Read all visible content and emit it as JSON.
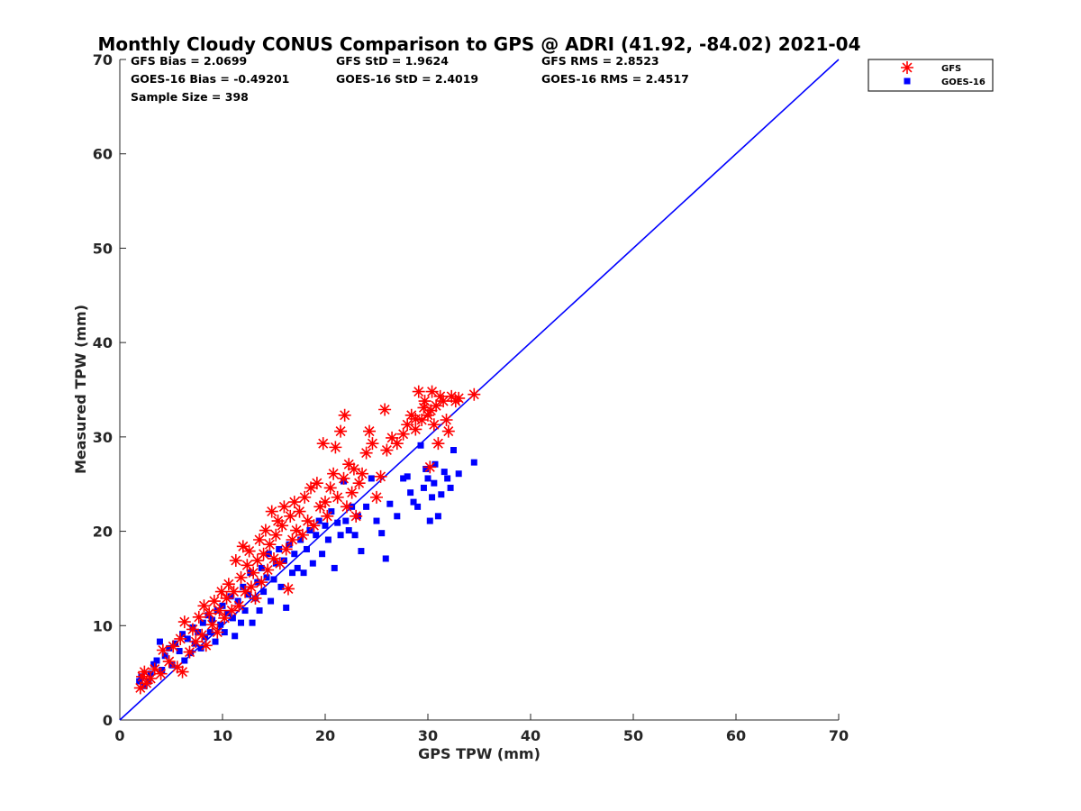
{
  "chart_data": {
    "type": "scatter",
    "title": "Monthly Cloudy CONUS Comparison to GPS @ ADRI (41.92, -84.02) 2021-04",
    "xlabel": "GPS TPW (mm)",
    "ylabel": "Measured TPW (mm)",
    "xlim": [
      0,
      70
    ],
    "ylim": [
      0,
      70
    ],
    "xticks": [
      "0",
      "10",
      "20",
      "30",
      "40",
      "50",
      "60",
      "70"
    ],
    "yticks": [
      "0",
      "10",
      "20",
      "30",
      "40",
      "50",
      "60",
      "70"
    ],
    "grid": false,
    "legend_position": "top-right-outside",
    "stats": {
      "gfs_bias": "GFS Bias = 2.0699",
      "gfs_std": "GFS StD = 1.9624",
      "gfs_rms": "GFS RMS = 2.8523",
      "goes_bias": "GOES-16 Bias = -0.49201",
      "goes_std": "GOES-16 StD = 2.4019",
      "goes_rms": "GOES-16 RMS = 2.4517",
      "sample_size": "Sample Size = 398"
    },
    "reference_line": {
      "x": [
        0,
        70
      ],
      "y": [
        0,
        70
      ],
      "color": "#0000ff"
    },
    "series": [
      {
        "name": "GFS",
        "marker": "asterisk",
        "color": "#ff0000",
        "points": [
          [
            2.0,
            3.4
          ],
          [
            2.2,
            4.6
          ],
          [
            2.6,
            3.9
          ],
          [
            3.0,
            4.4
          ],
          [
            2.4,
            5.1
          ],
          [
            3.4,
            5.4
          ],
          [
            4.0,
            4.9
          ],
          [
            4.2,
            7.4
          ],
          [
            4.8,
            6.2
          ],
          [
            5.2,
            7.8
          ],
          [
            5.6,
            5.6
          ],
          [
            5.9,
            8.6
          ],
          [
            6.1,
            5.1
          ],
          [
            6.3,
            10.4
          ],
          [
            6.8,
            7.2
          ],
          [
            7.1,
            9.6
          ],
          [
            7.4,
            8.3
          ],
          [
            7.7,
            10.9
          ],
          [
            8.0,
            9.0
          ],
          [
            8.2,
            12.1
          ],
          [
            8.4,
            7.9
          ],
          [
            8.7,
            11.3
          ],
          [
            9.0,
            10.1
          ],
          [
            9.2,
            12.6
          ],
          [
            9.5,
            9.3
          ],
          [
            9.7,
            11.6
          ],
          [
            9.9,
            13.6
          ],
          [
            10.2,
            10.8
          ],
          [
            10.4,
            12.9
          ],
          [
            10.6,
            14.4
          ],
          [
            10.9,
            11.6
          ],
          [
            11.1,
            13.6
          ],
          [
            11.3,
            16.9
          ],
          [
            11.6,
            12.1
          ],
          [
            11.8,
            15.1
          ],
          [
            12.0,
            18.4
          ],
          [
            12.2,
            13.6
          ],
          [
            12.4,
            16.4
          ],
          [
            12.6,
            17.9
          ],
          [
            12.8,
            14.1
          ],
          [
            13.0,
            15.6
          ],
          [
            13.2,
            12.9
          ],
          [
            13.4,
            16.9
          ],
          [
            13.6,
            19.1
          ],
          [
            13.8,
            14.6
          ],
          [
            14.0,
            17.6
          ],
          [
            14.2,
            20.1
          ],
          [
            14.4,
            15.9
          ],
          [
            14.6,
            18.6
          ],
          [
            14.8,
            22.1
          ],
          [
            15.0,
            17.1
          ],
          [
            15.2,
            19.6
          ],
          [
            15.4,
            21.1
          ],
          [
            15.6,
            16.6
          ],
          [
            15.8,
            20.6
          ],
          [
            16.0,
            22.6
          ],
          [
            16.2,
            18.1
          ],
          [
            16.4,
            13.9
          ],
          [
            16.6,
            21.6
          ],
          [
            16.8,
            19.1
          ],
          [
            17.0,
            23.1
          ],
          [
            17.2,
            20.1
          ],
          [
            17.5,
            22.1
          ],
          [
            17.8,
            19.6
          ],
          [
            18.0,
            23.6
          ],
          [
            18.3,
            21.1
          ],
          [
            18.6,
            24.6
          ],
          [
            18.9,
            20.6
          ],
          [
            19.2,
            25.1
          ],
          [
            19.5,
            22.6
          ],
          [
            19.8,
            29.3
          ],
          [
            20.0,
            23.1
          ],
          [
            20.2,
            21.6
          ],
          [
            20.5,
            24.6
          ],
          [
            20.8,
            26.1
          ],
          [
            21.0,
            28.9
          ],
          [
            21.2,
            23.6
          ],
          [
            21.5,
            30.6
          ],
          [
            21.8,
            25.6
          ],
          [
            21.9,
            32.3
          ],
          [
            22.1,
            22.6
          ],
          [
            22.3,
            27.1
          ],
          [
            22.6,
            24.1
          ],
          [
            22.8,
            26.6
          ],
          [
            23.0,
            21.6
          ],
          [
            23.3,
            25.1
          ],
          [
            23.6,
            26.1
          ],
          [
            24.0,
            28.3
          ],
          [
            24.3,
            30.6
          ],
          [
            24.6,
            29.3
          ],
          [
            25.0,
            23.6
          ],
          [
            25.4,
            25.8
          ],
          [
            25.8,
            32.9
          ],
          [
            26.0,
            28.6
          ],
          [
            26.5,
            29.9
          ],
          [
            27.0,
            29.3
          ],
          [
            27.6,
            30.3
          ],
          [
            28.0,
            31.3
          ],
          [
            28.4,
            32.3
          ],
          [
            28.8,
            30.8
          ],
          [
            29.1,
            34.8
          ],
          [
            29.4,
            31.8
          ],
          [
            29.7,
            33.8
          ],
          [
            30.0,
            32.3
          ],
          [
            30.2,
            26.8
          ],
          [
            30.4,
            34.8
          ],
          [
            30.6,
            31.3
          ],
          [
            30.8,
            33.3
          ],
          [
            31.0,
            29.3
          ],
          [
            31.2,
            34.3
          ],
          [
            31.5,
            33.8
          ],
          [
            31.8,
            31.8
          ],
          [
            32.0,
            30.6
          ],
          [
            32.3,
            34.3
          ],
          [
            32.7,
            33.8
          ],
          [
            33.0,
            34.1
          ],
          [
            34.5,
            34.5
          ],
          [
            29.6,
            33.1
          ],
          [
            28.8,
            31.9
          ],
          [
            30.3,
            32.8
          ]
        ]
      },
      {
        "name": "GOES-16",
        "marker": "square",
        "color": "#0000ff",
        "points": [
          [
            1.9,
            4.1
          ],
          [
            2.1,
            4.6
          ],
          [
            2.4,
            3.6
          ],
          [
            2.8,
            4.1
          ],
          [
            3.0,
            4.9
          ],
          [
            3.3,
            5.9
          ],
          [
            3.6,
            6.3
          ],
          [
            3.9,
            8.3
          ],
          [
            4.1,
            5.3
          ],
          [
            4.4,
            6.8
          ],
          [
            4.8,
            7.6
          ],
          [
            5.1,
            5.8
          ],
          [
            5.4,
            8.1
          ],
          [
            5.8,
            7.3
          ],
          [
            6.1,
            9.1
          ],
          [
            6.3,
            6.3
          ],
          [
            6.6,
            8.6
          ],
          [
            6.9,
            7.1
          ],
          [
            7.1,
            9.8
          ],
          [
            7.3,
            8.1
          ],
          [
            7.6,
            9.3
          ],
          [
            7.9,
            7.6
          ],
          [
            8.1,
            10.3
          ],
          [
            8.3,
            8.8
          ],
          [
            8.6,
            11.1
          ],
          [
            8.8,
            9.3
          ],
          [
            9.0,
            10.6
          ],
          [
            9.3,
            8.3
          ],
          [
            9.5,
            11.6
          ],
          [
            9.8,
            10.1
          ],
          [
            10.0,
            12.1
          ],
          [
            10.2,
            9.3
          ],
          [
            10.5,
            11.3
          ],
          [
            10.8,
            13.1
          ],
          [
            11.0,
            10.8
          ],
          [
            11.2,
            8.9
          ],
          [
            11.5,
            12.6
          ],
          [
            11.8,
            10.3
          ],
          [
            12.0,
            14.1
          ],
          [
            12.2,
            11.6
          ],
          [
            12.5,
            13.3
          ],
          [
            12.7,
            15.6
          ],
          [
            12.9,
            10.3
          ],
          [
            13.2,
            12.9
          ],
          [
            13.4,
            14.6
          ],
          [
            13.6,
            11.6
          ],
          [
            13.8,
            16.1
          ],
          [
            14.0,
            13.6
          ],
          [
            14.3,
            15.1
          ],
          [
            14.5,
            17.6
          ],
          [
            14.7,
            12.6
          ],
          [
            15.0,
            14.9
          ],
          [
            15.2,
            16.6
          ],
          [
            15.5,
            18.1
          ],
          [
            15.7,
            14.1
          ],
          [
            16.0,
            16.9
          ],
          [
            16.2,
            11.9
          ],
          [
            16.5,
            18.6
          ],
          [
            16.8,
            15.6
          ],
          [
            17.0,
            17.6
          ],
          [
            17.3,
            16.1
          ],
          [
            17.6,
            19.1
          ],
          [
            17.9,
            15.6
          ],
          [
            18.2,
            18.1
          ],
          [
            18.5,
            20.1
          ],
          [
            18.8,
            16.6
          ],
          [
            19.1,
            19.6
          ],
          [
            19.4,
            21.1
          ],
          [
            19.7,
            17.6
          ],
          [
            20.0,
            20.6
          ],
          [
            20.3,
            19.1
          ],
          [
            20.6,
            22.1
          ],
          [
            20.9,
            16.1
          ],
          [
            21.2,
            20.9
          ],
          [
            21.5,
            19.6
          ],
          [
            21.8,
            25.3
          ],
          [
            22.0,
            21.1
          ],
          [
            22.3,
            20.1
          ],
          [
            22.6,
            22.6
          ],
          [
            22.9,
            19.6
          ],
          [
            23.2,
            21.6
          ],
          [
            23.5,
            17.9
          ],
          [
            24.0,
            22.6
          ],
          [
            24.5,
            25.6
          ],
          [
            25.0,
            21.1
          ],
          [
            25.5,
            19.8
          ],
          [
            25.9,
            17.1
          ],
          [
            26.3,
            22.9
          ],
          [
            27.0,
            21.6
          ],
          [
            27.6,
            25.6
          ],
          [
            28.0,
            25.8
          ],
          [
            28.3,
            24.1
          ],
          [
            28.6,
            23.1
          ],
          [
            29.0,
            22.6
          ],
          [
            29.3,
            29.1
          ],
          [
            29.6,
            24.6
          ],
          [
            30.0,
            25.6
          ],
          [
            30.2,
            21.1
          ],
          [
            30.4,
            23.6
          ],
          [
            30.7,
            27.1
          ],
          [
            31.0,
            21.6
          ],
          [
            31.3,
            23.9
          ],
          [
            31.6,
            26.3
          ],
          [
            31.9,
            25.6
          ],
          [
            32.2,
            24.6
          ],
          [
            32.5,
            28.6
          ],
          [
            33.0,
            26.1
          ],
          [
            34.5,
            27.3
          ],
          [
            30.6,
            25.1
          ],
          [
            29.8,
            26.6
          ]
        ]
      }
    ]
  }
}
